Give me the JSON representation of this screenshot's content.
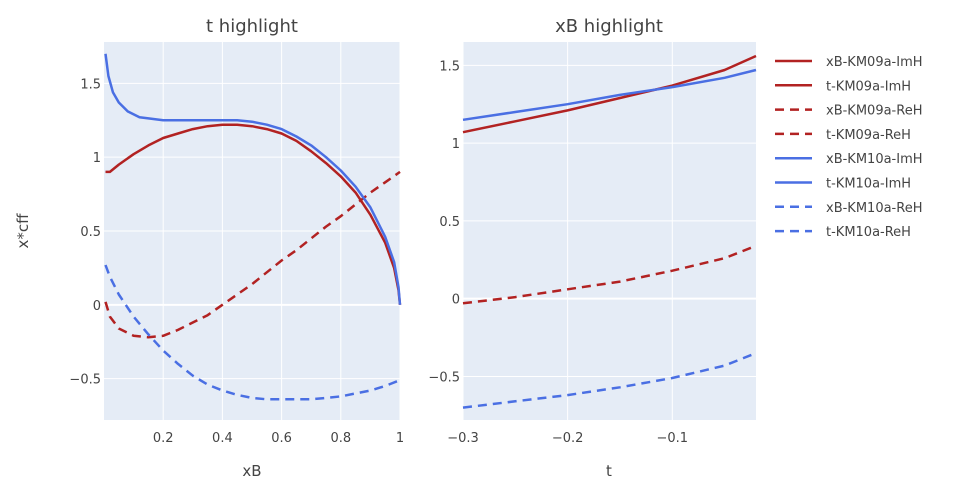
{
  "chart_data": [
    {
      "type": "line",
      "title": "t highlight",
      "xlabel": "xB",
      "ylabel": "x*cff",
      "xlim": [
        0.0,
        1.0
      ],
      "ylim": [
        -0.78,
        1.78
      ],
      "xticks": [
        0.2,
        0.4,
        0.6,
        0.8,
        1.0
      ],
      "xtick_labels": [
        "0.2",
        "0.4",
        "0.6",
        "0.8",
        "1"
      ],
      "yticks": [
        -0.5,
        0,
        0.5,
        1,
        1.5
      ],
      "ytick_labels": [
        "−0.5",
        "0",
        "0.5",
        "1",
        "1.5"
      ],
      "grid": true,
      "series": [
        {
          "name": "xB-KM09a-ImH",
          "dash": "solid",
          "color": "#b22222",
          "x": [
            0.005,
            0.02,
            0.05,
            0.1,
            0.15,
            0.2,
            0.25,
            0.3,
            0.35,
            0.4,
            0.45,
            0.5,
            0.55,
            0.6,
            0.65,
            0.7,
            0.75,
            0.8,
            0.85,
            0.9,
            0.95,
            0.98,
            0.995,
            1.0
          ],
          "y": [
            0.9,
            0.9,
            0.95,
            1.02,
            1.08,
            1.13,
            1.16,
            1.19,
            1.21,
            1.22,
            1.22,
            1.21,
            1.19,
            1.16,
            1.11,
            1.04,
            0.96,
            0.87,
            0.76,
            0.61,
            0.42,
            0.25,
            0.1,
            0.0
          ]
        },
        {
          "name": "xB-KM09a-ReH",
          "dash": "dash",
          "color": "#b22222",
          "x": [
            0.005,
            0.02,
            0.05,
            0.1,
            0.15,
            0.2,
            0.25,
            0.3,
            0.35,
            0.4,
            0.45,
            0.5,
            0.55,
            0.6,
            0.65,
            0.7,
            0.75,
            0.8,
            0.85,
            0.9,
            0.95,
            1.0
          ],
          "y": [
            0.02,
            -0.08,
            -0.16,
            -0.21,
            -0.22,
            -0.21,
            -0.17,
            -0.12,
            -0.07,
            0.0,
            0.07,
            0.14,
            0.22,
            0.3,
            0.37,
            0.45,
            0.53,
            0.6,
            0.68,
            0.76,
            0.83,
            0.9
          ]
        },
        {
          "name": "xB-KM10a-ImH",
          "dash": "solid",
          "color": "#4a6fe3",
          "x": [
            0.005,
            0.015,
            0.03,
            0.05,
            0.08,
            0.12,
            0.16,
            0.2,
            0.25,
            0.3,
            0.35,
            0.4,
            0.45,
            0.5,
            0.55,
            0.6,
            0.65,
            0.7,
            0.75,
            0.8,
            0.85,
            0.9,
            0.95,
            0.98,
            0.995,
            1.0
          ],
          "y": [
            1.7,
            1.55,
            1.44,
            1.37,
            1.31,
            1.27,
            1.26,
            1.25,
            1.25,
            1.25,
            1.25,
            1.25,
            1.25,
            1.24,
            1.22,
            1.19,
            1.14,
            1.08,
            1.0,
            0.91,
            0.8,
            0.66,
            0.46,
            0.29,
            0.12,
            0.0
          ]
        },
        {
          "name": "xB-KM10a-ReH",
          "dash": "dash",
          "color": "#4a6fe3",
          "x": [
            0.005,
            0.02,
            0.05,
            0.1,
            0.15,
            0.2,
            0.25,
            0.3,
            0.35,
            0.4,
            0.45,
            0.5,
            0.55,
            0.6,
            0.65,
            0.7,
            0.75,
            0.8,
            0.85,
            0.9,
            0.95,
            1.0
          ],
          "y": [
            0.27,
            0.19,
            0.07,
            -0.08,
            -0.2,
            -0.31,
            -0.4,
            -0.48,
            -0.54,
            -0.58,
            -0.61,
            -0.63,
            -0.64,
            -0.64,
            -0.64,
            -0.64,
            -0.63,
            -0.62,
            -0.6,
            -0.58,
            -0.55,
            -0.51
          ]
        }
      ]
    },
    {
      "type": "line",
      "title": "xB highlight",
      "xlabel": "t",
      "ylabel": "",
      "xlim": [
        -0.3,
        -0.02
      ],
      "ylim": [
        -0.78,
        1.65
      ],
      "xticks": [
        -0.3,
        -0.2,
        -0.1
      ],
      "xtick_labels": [
        "−0.3",
        "−0.2",
        "−0.1"
      ],
      "yticks": [
        -0.5,
        0,
        0.5,
        1,
        1.5
      ],
      "ytick_labels": [
        "−0.5",
        "0",
        "0.5",
        "1",
        "1.5"
      ],
      "grid": true,
      "series": [
        {
          "name": "t-KM09a-ImH",
          "dash": "solid",
          "color": "#b22222",
          "x": [
            -0.3,
            -0.25,
            -0.2,
            -0.15,
            -0.1,
            -0.05,
            -0.02
          ],
          "y": [
            1.07,
            1.14,
            1.21,
            1.29,
            1.37,
            1.47,
            1.56
          ]
        },
        {
          "name": "t-KM09a-ReH",
          "dash": "dash",
          "color": "#b22222",
          "x": [
            -0.3,
            -0.25,
            -0.2,
            -0.15,
            -0.1,
            -0.05,
            -0.02
          ],
          "y": [
            -0.03,
            0.01,
            0.06,
            0.11,
            0.18,
            0.26,
            0.34
          ]
        },
        {
          "name": "t-KM10a-ImH",
          "dash": "solid",
          "color": "#4a6fe3",
          "x": [
            -0.3,
            -0.25,
            -0.2,
            -0.15,
            -0.1,
            -0.05,
            -0.02
          ],
          "y": [
            1.15,
            1.2,
            1.25,
            1.31,
            1.36,
            1.42,
            1.47
          ]
        },
        {
          "name": "t-KM10a-ReH",
          "dash": "dash",
          "color": "#4a6fe3",
          "x": [
            -0.3,
            -0.25,
            -0.2,
            -0.15,
            -0.1,
            -0.05,
            -0.02
          ],
          "y": [
            -0.7,
            -0.66,
            -0.62,
            -0.57,
            -0.51,
            -0.43,
            -0.35
          ]
        }
      ]
    }
  ],
  "legend": {
    "placement": "right",
    "entries": [
      {
        "label": "xB-KM09a-ImH",
        "color": "#b22222",
        "dash": "solid"
      },
      {
        "label": "t-KM09a-ImH",
        "color": "#b22222",
        "dash": "solid"
      },
      {
        "label": "xB-KM09a-ReH",
        "color": "#b22222",
        "dash": "dash"
      },
      {
        "label": "t-KM09a-ReH",
        "color": "#b22222",
        "dash": "dash"
      },
      {
        "label": "xB-KM10a-ImH",
        "color": "#4a6fe3",
        "dash": "solid"
      },
      {
        "label": "t-KM10a-ImH",
        "color": "#4a6fe3",
        "dash": "solid"
      },
      {
        "label": "xB-KM10a-ReH",
        "color": "#4a6fe3",
        "dash": "dash"
      },
      {
        "label": "t-KM10a-ReH",
        "color": "#4a6fe3",
        "dash": "dash"
      }
    ]
  },
  "colors": {
    "plot_background": "#e5ecf6",
    "grid": "#ffffff",
    "text": "#444444"
  }
}
